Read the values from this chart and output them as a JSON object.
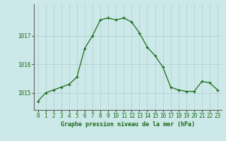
{
  "hours": [
    0,
    1,
    2,
    3,
    4,
    5,
    6,
    7,
    8,
    9,
    10,
    11,
    12,
    13,
    14,
    15,
    16,
    17,
    18,
    19,
    20,
    21,
    22,
    23
  ],
  "pressure": [
    1014.7,
    1015.0,
    1015.1,
    1015.2,
    1015.3,
    1015.55,
    1016.55,
    1017.0,
    1017.55,
    1017.62,
    1017.55,
    1017.62,
    1017.48,
    1017.1,
    1016.6,
    1016.3,
    1015.9,
    1015.2,
    1015.1,
    1015.05,
    1015.05,
    1015.4,
    1015.35,
    1015.1
  ],
  "line_color": "#1a6b1a",
  "marker": "+",
  "marker_size": 3.5,
  "marker_linewidth": 0.9,
  "line_width": 0.9,
  "bg_color": "#cce8e8",
  "grid_color": "#b0cccc",
  "xlabel": "Graphe pression niveau de la mer (hPa)",
  "xlabel_color": "#1a6b1a",
  "tick_color": "#1a6b1a",
  "ylim": [
    1014.4,
    1018.1
  ],
  "yticks": [
    1015,
    1016,
    1017
  ],
  "xlim": [
    -0.5,
    23.5
  ],
  "xticks": [
    0,
    1,
    2,
    3,
    4,
    5,
    6,
    7,
    8,
    9,
    10,
    11,
    12,
    13,
    14,
    15,
    16,
    17,
    18,
    19,
    20,
    21,
    22,
    23
  ],
  "spine_color": "#666666",
  "tick_fontsize": 5.5,
  "xlabel_fontsize": 6.0
}
